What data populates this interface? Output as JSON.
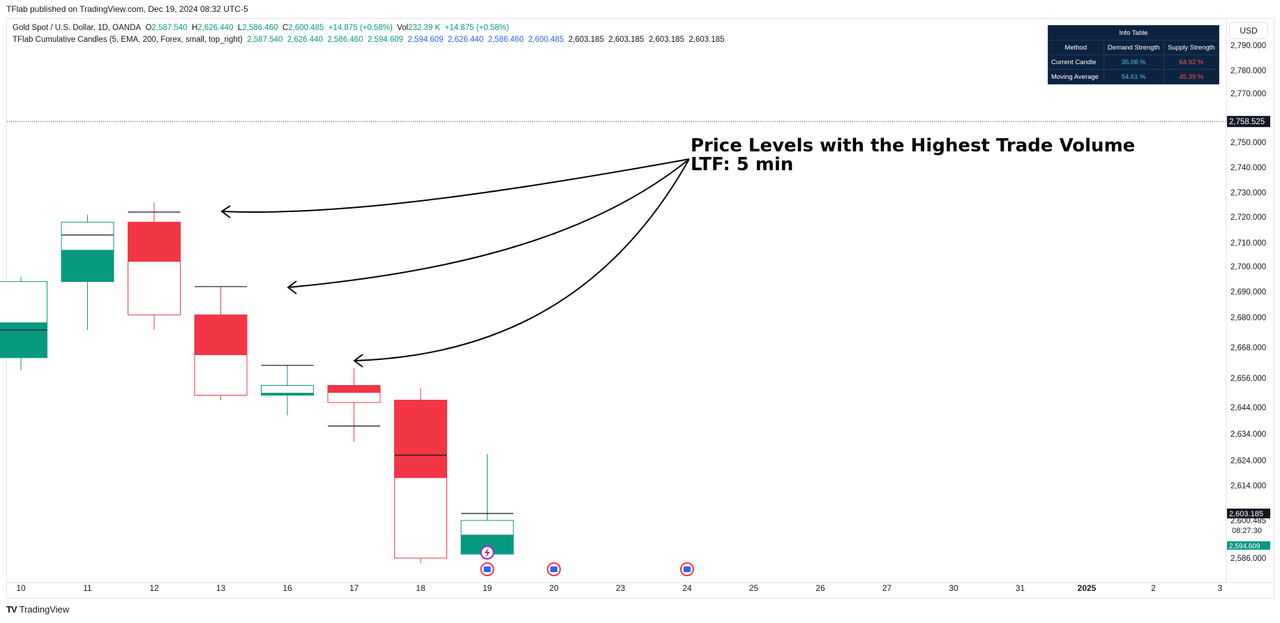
{
  "header": {
    "published": "TFlab published on TradingView.com, Dec 19, 2024 08:32 UTC-5"
  },
  "legend": {
    "symbol": "Gold Spot / U.S. Dollar, 1D, OANDA",
    "o_label": "O",
    "o_value": "2,587.540",
    "h_label": "H",
    "h_value": "2,626.440",
    "l_label": "L",
    "l_value": "2,586.460",
    "c_label": "C",
    "c_value": "2,600.485",
    "change": "+14.875 (+0.58%)",
    "vol_label": "Vol",
    "vol_value": "232.39 K",
    "vol_change": "+14.875 (+0.58%)",
    "indicator": "TFlab Cumulative Candles (5, EMA, 200, Forex, small, top_right)",
    "ind_values": [
      "2,587.540",
      "2,626.440",
      "2,586.460",
      "2,594.609",
      "2,594.609",
      "2,626.440",
      "2,586.460",
      "2,600.485",
      "2,603.185",
      "2,603.185",
      "2,603.185",
      "2,603.185"
    ]
  },
  "currency_button": "USD",
  "info_table": {
    "title": "Info Table",
    "headers": [
      "Method",
      "Demand Strength",
      "Supply Strength"
    ],
    "rows": [
      {
        "method": "Current Candle",
        "demand": "35.08 %",
        "supply": "64.92 %"
      },
      {
        "method": "Moving Average",
        "demand": "54.61 %",
        "supply": "45.39 %"
      }
    ]
  },
  "annotation": {
    "line1": "Price Levels with the Highest Trade Volume",
    "line2": "LTF: 5 min"
  },
  "footer": {
    "brand": "TradingView",
    "logo": "TV"
  },
  "colors": {
    "up": "#089981",
    "down": "#f23645",
    "text": "#131722",
    "grid_border": "#e0e3eb",
    "table_bg": "#0c2340"
  },
  "chart_data": {
    "type": "candlestick",
    "x_ticks": [
      "10",
      "11",
      "12",
      "13",
      "16",
      "17",
      "18",
      "19",
      "20",
      "23",
      "24",
      "25",
      "26",
      "27",
      "30",
      "31",
      "2025",
      "2",
      "3"
    ],
    "y_ticks": [
      2586,
      2600.485,
      2614,
      2624,
      2634,
      2644,
      2656,
      2668,
      2680,
      2690,
      2700,
      2710,
      2720,
      2730,
      2740,
      2750,
      2770,
      2780,
      2790
    ],
    "y_tick_labels": [
      "2,586.000",
      "2,600.485",
      "2,614.000",
      "2,624.000",
      "2,634.000",
      "2,644.000",
      "2,656.000",
      "2,668.000",
      "2,680.000",
      "2,690.000",
      "2,700.000",
      "2,710.000",
      "2,720.000",
      "2,730.000",
      "2,740.000",
      "2,750.000",
      "2,770.000",
      "2,780.000",
      "2,790.000"
    ],
    "candles": [
      {
        "x": "10",
        "open": 2664,
        "high": 2696,
        "low": 2659,
        "close": 2694,
        "split": 2678,
        "poc": 2675
      },
      {
        "x": "11",
        "open": 2694,
        "high": 2721,
        "low": 2675,
        "close": 2718,
        "split": 2707,
        "poc": 2713
      },
      {
        "x": "12",
        "open": 2718,
        "high": 2726,
        "low": 2675,
        "close": 2681,
        "split": 2702,
        "poc": 2722
      },
      {
        "x": "13",
        "open": 2681,
        "high": 2692,
        "low": 2647,
        "close": 2649,
        "split": 2665,
        "poc": 2692
      },
      {
        "x": "16",
        "open": 2649,
        "high": 2661,
        "low": 2641,
        "close": 2653,
        "split": 2650,
        "poc": 2661
      },
      {
        "x": "17",
        "open": 2653,
        "high": 2660,
        "low": 2631,
        "close": 2646,
        "split": 2650,
        "poc": 2637
      },
      {
        "x": "18",
        "open": 2647,
        "high": 2652,
        "low": 2584,
        "close": 2586,
        "split": 2617,
        "poc": 2626
      },
      {
        "x": "19",
        "open": 2587.54,
        "high": 2626.44,
        "low": 2586.46,
        "close": 2600.485,
        "split": 2595,
        "poc": 2603.185
      }
    ],
    "event_markers": [
      "19",
      "20",
      "24"
    ],
    "price_line": {
      "value": 2758.525,
      "label": "2,758.525"
    },
    "last_price": {
      "value": 2600.485,
      "label": "2,600.485",
      "countdown": "08:27:30"
    },
    "poc_label": "2,603.185",
    "bid_label": "2,594.609"
  }
}
